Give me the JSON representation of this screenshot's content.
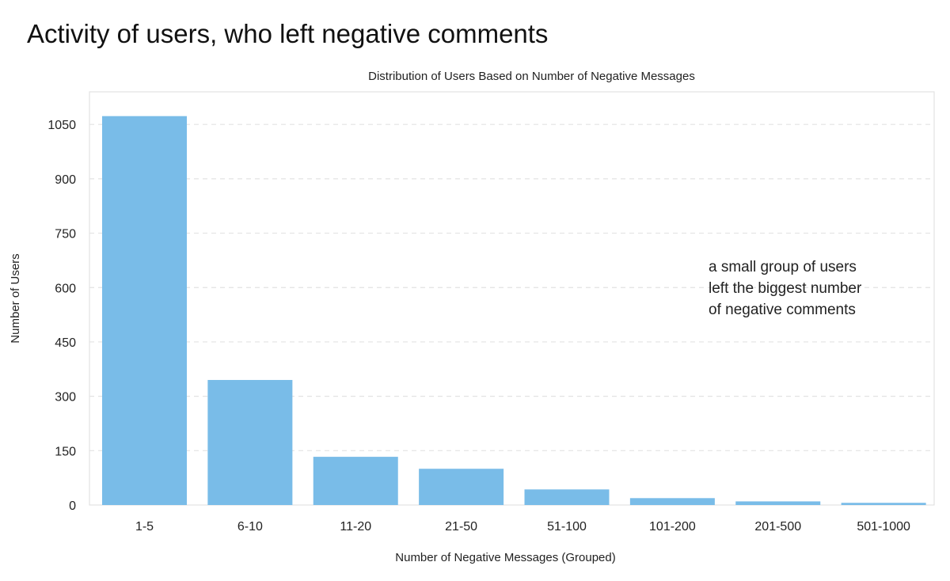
{
  "page": {
    "title": "Activity of users, who left negative comments"
  },
  "chart_data": {
    "type": "bar",
    "title": "Distribution of Users Based on Number of Negative Messages",
    "xlabel": "Number of Negative Messages (Grouped)",
    "ylabel": "Number of Users",
    "categories": [
      "1-5",
      "6-10",
      "11-20",
      "21-50",
      "51-100",
      "101-200",
      "201-500",
      "501-1000"
    ],
    "values": [
      1073,
      345,
      133,
      100,
      43,
      19,
      10,
      6
    ],
    "ylim": [
      0,
      1140
    ],
    "yticks": [
      0,
      150,
      300,
      450,
      600,
      750,
      900,
      1050
    ],
    "grid": true,
    "bar_color": "#79bce8",
    "annotation": [
      "a small group of users",
      "left the biggest number",
      "of negative comments"
    ]
  }
}
